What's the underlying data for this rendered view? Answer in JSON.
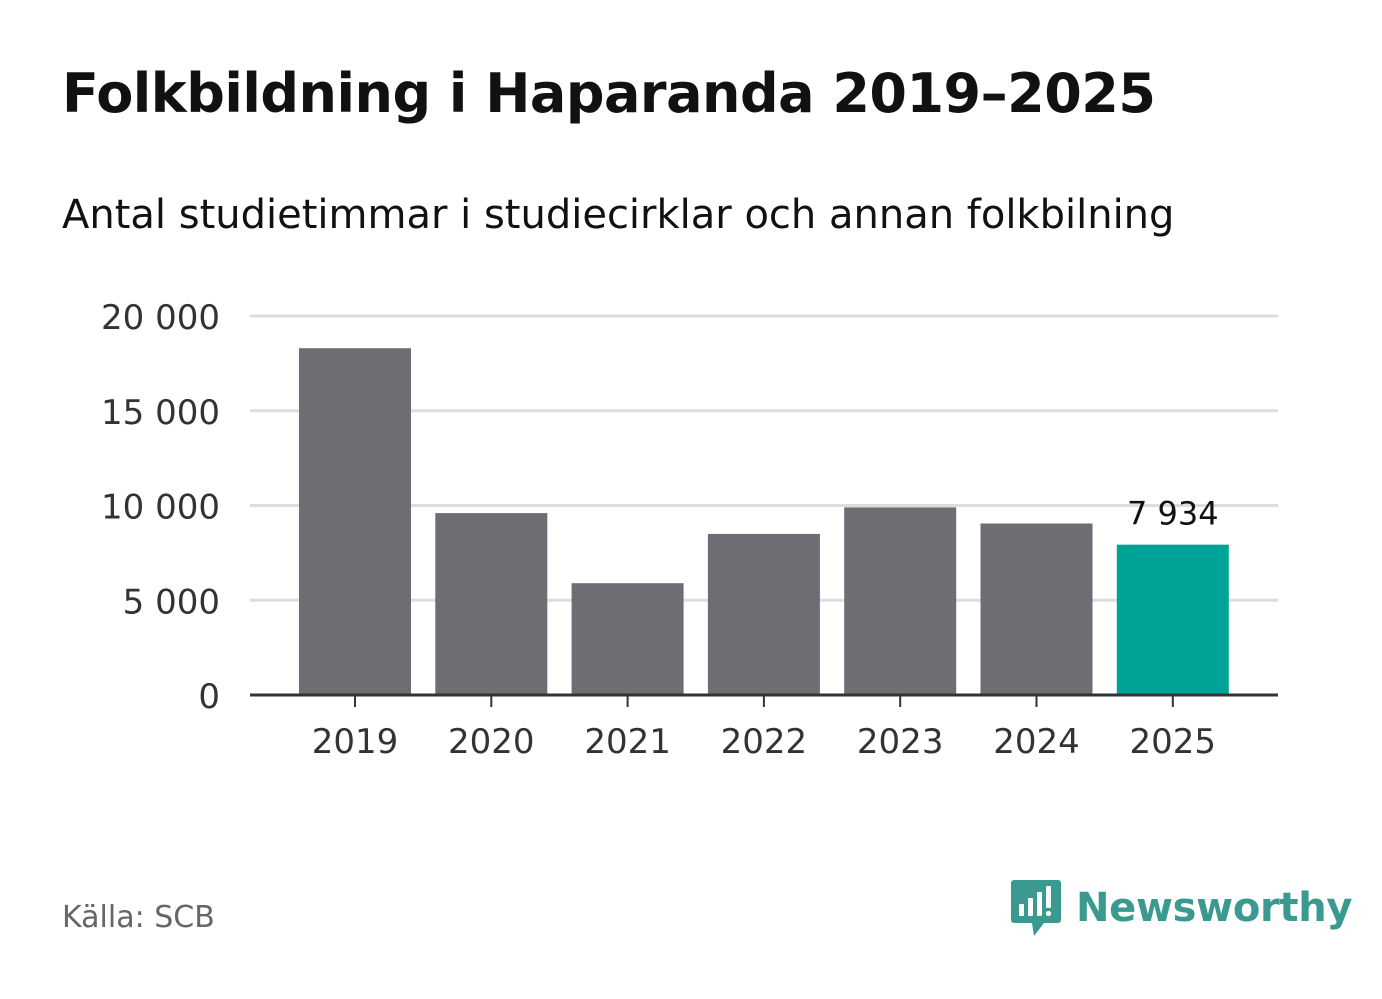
{
  "header": {
    "title": "Folkbildning i Haparanda 2019–2025",
    "subtitle": "Antal studietimmar i studiecirklar och annan folkbilning"
  },
  "footer": {
    "source": "Källa: SCB",
    "brand": "Newsworthy",
    "brand_icon": "bar-chart-speech-bubble-icon"
  },
  "colors": {
    "bar": "#6e6d73",
    "highlight": "#00a398",
    "grid": "#dddddd",
    "axis": "#333333",
    "text": "#111111",
    "brand": "#3a9a90",
    "source_text": "#666666"
  },
  "chart_data": {
    "type": "bar",
    "categories": [
      "2019",
      "2020",
      "2021",
      "2022",
      "2023",
      "2024",
      "2025"
    ],
    "values": [
      18300,
      9600,
      5900,
      8500,
      9900,
      9050,
      7934
    ],
    "highlight_index": 6,
    "data_labels": [
      {
        "index": 6,
        "text": "7 934"
      }
    ],
    "ylim": [
      0,
      20000
    ],
    "yticks": [
      0,
      5000,
      10000,
      15000,
      20000
    ],
    "ytick_labels": [
      "0",
      "5 000",
      "10 000",
      "15 000",
      "20 000"
    ],
    "grid": true
  }
}
